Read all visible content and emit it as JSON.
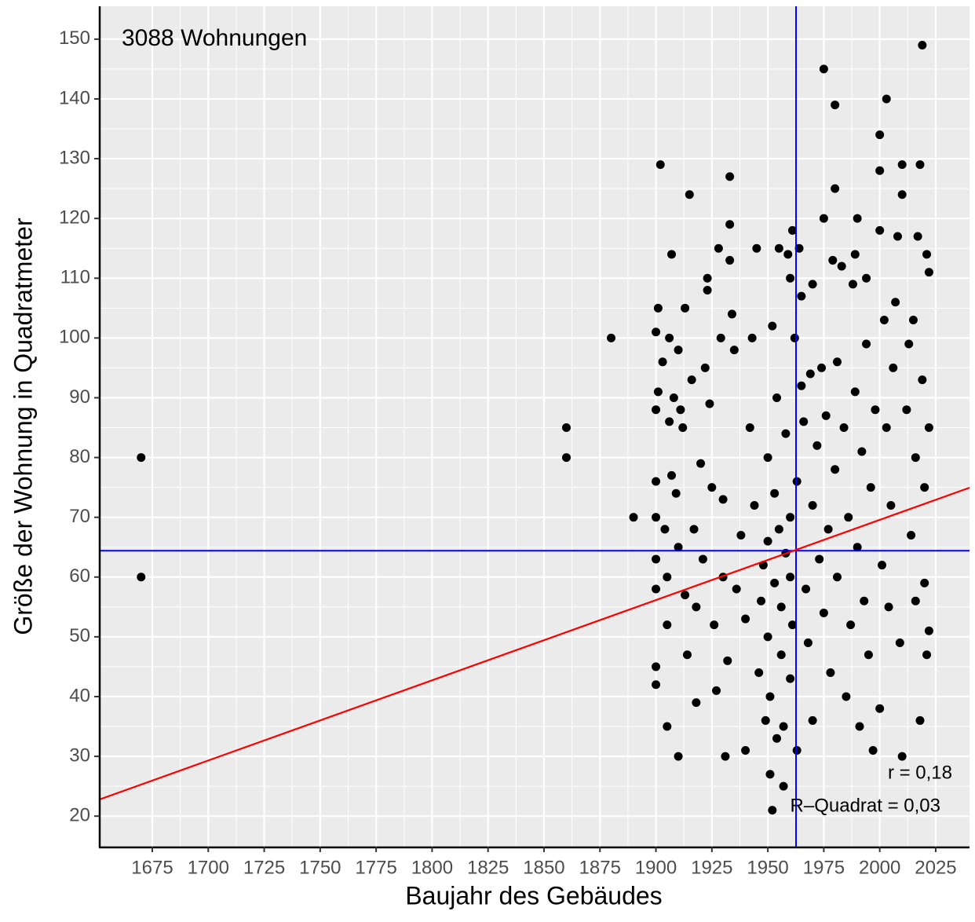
{
  "chart_data": {
    "type": "scatter",
    "xlabel": "Baujahr des Gebäudes",
    "ylabel": "Größe der Wohnung in Quadratmeter",
    "annotations": [
      "3088 Wohnungen",
      "r = 0,18",
      "R–Quadrat = 0,03"
    ],
    "xlim": [
      1651.5,
      2040.1
    ],
    "ylim": [
      14.9,
      155.5
    ],
    "xticks": [
      1675,
      1700,
      1725,
      1750,
      1775,
      1800,
      1825,
      1850,
      1875,
      1900,
      1925,
      1950,
      1975,
      2000,
      2025
    ],
    "yticks": [
      20,
      30,
      40,
      50,
      60,
      70,
      80,
      90,
      100,
      110,
      120,
      130,
      140,
      150
    ],
    "grid": true,
    "color": "#000000",
    "vline": {
      "value": 1962.6,
      "color": "#0000ff"
    },
    "hline": {
      "value": 64.4,
      "color": "#0000ff"
    },
    "regression": {
      "x": [
        1651.5,
        2040.1
      ],
      "y": [
        22.8,
        74.95
      ],
      "color": "#ff0000"
    },
    "x": [
      1670,
      1670,
      1860,
      1860,
      1880,
      1890,
      1900,
      1900,
      1900,
      1900,
      1900,
      1900,
      1900,
      1900,
      1901,
      1901,
      1902,
      1903,
      1904,
      1905,
      1905,
      1905,
      1906,
      1906,
      1907,
      1907,
      1908,
      1909,
      1910,
      1910,
      1910,
      1911,
      1912,
      1913,
      1913,
      1914,
      1915,
      1916,
      1917,
      1918,
      1918,
      1920,
      1921,
      1922,
      1923,
      1923,
      1924,
      1925,
      1926,
      1927,
      1928,
      1929,
      1930,
      1930,
      1931,
      1932,
      1933,
      1933,
      1933,
      1934,
      1935,
      1936,
      1938,
      1940,
      1940,
      1942,
      1943,
      1944,
      1945,
      1946,
      1947,
      1948,
      1949,
      1950,
      1950,
      1950,
      1951,
      1951,
      1952,
      1952,
      1953,
      1953,
      1954,
      1954,
      1955,
      1955,
      1956,
      1956,
      1957,
      1957,
      1958,
      1958,
      1959,
      1960,
      1960,
      1960,
      1960,
      1961,
      1961,
      1962,
      1963,
      1963,
      1964,
      1965,
      1965,
      1966,
      1967,
      1968,
      1969,
      1970,
      1970,
      1970,
      1972,
      1973,
      1974,
      1975,
      1975,
      1975,
      1976,
      1977,
      1978,
      1979,
      1980,
      1980,
      1980,
      1981,
      1981,
      1983,
      1984,
      1985,
      1986,
      1987,
      1988,
      1989,
      1989,
      1990,
      1990,
      1991,
      1992,
      1993,
      1994,
      1994,
      1995,
      1996,
      1997,
      1998,
      2000,
      2000,
      2000,
      2000,
      2001,
      2002,
      2003,
      2003,
      2004,
      2005,
      2006,
      2007,
      2008,
      2009,
      2010,
      2010,
      2010,
      2012,
      2013,
      2014,
      2015,
      2016,
      2016,
      2017,
      2018,
      2018,
      2019,
      2019,
      2020,
      2020,
      2021,
      2021,
      2022,
      2022,
      2022
    ],
    "values": [
      80,
      60,
      85,
      80,
      100,
      70,
      101,
      88,
      76,
      70,
      63,
      58,
      45,
      42,
      105,
      91,
      129,
      96,
      68,
      60,
      52,
      35,
      100,
      86,
      114,
      77,
      90,
      74,
      98,
      65,
      30,
      88,
      85,
      57,
      105,
      47,
      124,
      93,
      68,
      55,
      39,
      79,
      63,
      95,
      110,
      108,
      89,
      75,
      52,
      41,
      115,
      100,
      73,
      60,
      30,
      46,
      127,
      119,
      113,
      104,
      98,
      58,
      67,
      31,
      53,
      85,
      100,
      72,
      115,
      44,
      56,
      62,
      36,
      80,
      66,
      50,
      40,
      27,
      21,
      102,
      74,
      59,
      33,
      90,
      115,
      68,
      55,
      47,
      35,
      25,
      84,
      64,
      114,
      110,
      70,
      60,
      43,
      118,
      52,
      100,
      76,
      31,
      115,
      92,
      107,
      86,
      58,
      49,
      94,
      109,
      72,
      36,
      82,
      63,
      95,
      145,
      120,
      54,
      87,
      68,
      44,
      113,
      139,
      125,
      78,
      96,
      60,
      112,
      85,
      40,
      70,
      52,
      109,
      91,
      114,
      120,
      65,
      35,
      81,
      56,
      110,
      99,
      47,
      75,
      31,
      88,
      134,
      128,
      118,
      38,
      62,
      103,
      140,
      85,
      55,
      72,
      95,
      106,
      117,
      49,
      129,
      124,
      30,
      88,
      99,
      67,
      103,
      80,
      56,
      117,
      129,
      36,
      149,
      93,
      75,
      59,
      114,
      47,
      111,
      85,
      51
    ]
  }
}
